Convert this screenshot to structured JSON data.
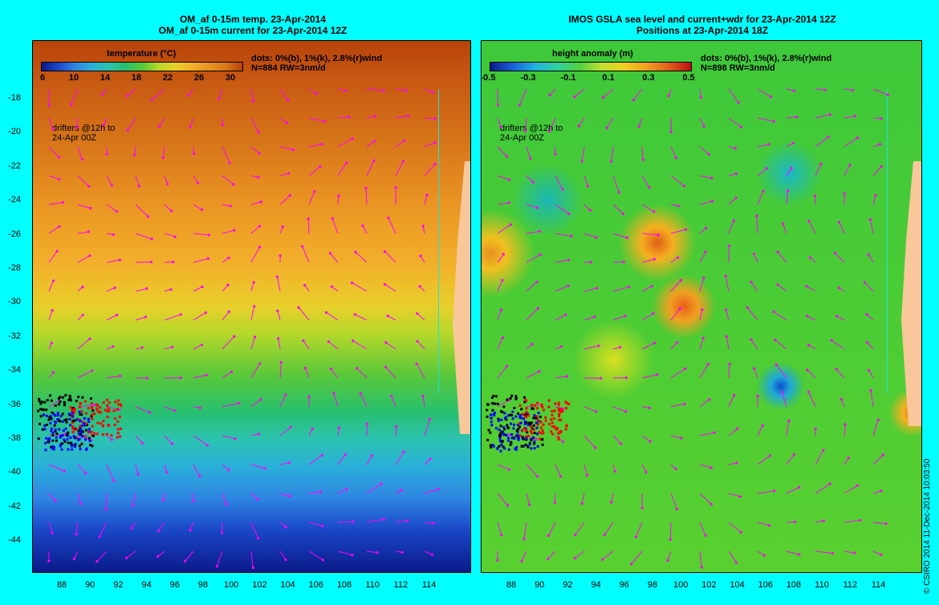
{
  "left": {
    "title_line1": "OM_af 0-15m temp. 23-Apr-2014",
    "title_line2": "OM_af 0-15m current for 23-Apr-2014 12Z",
    "colorbar_title": "temperature (°C)",
    "colorbar_ticks": [
      "6",
      "10",
      "14",
      "18",
      "22",
      "26",
      "30"
    ],
    "info_line1": "dots: 0%(b), 1%(k), 2.8%(r)wind",
    "info_line2": "N=884 RW=3nm/d",
    "note_line1": "drifters @12h to",
    "note_line2": "24-Apr 00Z"
  },
  "right": {
    "title_line1": "IMOS GSLA sea level and current+wdr for 23-Apr-2014 12Z",
    "title_line2": "Positions at 23-Apr-2014 18Z",
    "colorbar_title": "height anomaly (m)",
    "colorbar_ticks": [
      "-0.5",
      "-0.3",
      "-0.1",
      "0.1",
      "0.3",
      "0.5"
    ],
    "info_line1": "dots: 0%(b), 1%(k), 2.8%(r)wind",
    "info_line2": "N=898 RW=3nm/d",
    "note_line1": "drifters @12h to",
    "note_line2": "24-Apr 00Z"
  },
  "y_ticks": [
    "-18",
    "-20",
    "-22",
    "-24",
    "-26",
    "-28",
    "-30",
    "-32",
    "-34",
    "-36",
    "-38",
    "-40",
    "-42",
    "-44"
  ],
  "left_x_ticks": [
    "88",
    "90",
    "92",
    "94",
    "96",
    "98",
    "100",
    "102",
    "104",
    "106",
    "108",
    "110",
    "112",
    "114"
  ],
  "right_x_ticks": [
    "88",
    "90",
    "92",
    "94",
    "96",
    "98",
    "100",
    "102",
    "104",
    "106",
    "108",
    "110",
    "112",
    "114"
  ],
  "credit": "© CSIRO 2014   11-Dec-2014 10:03:50",
  "colors": {
    "background": "#00ffff",
    "arrows": "#ff00ff",
    "drifter_blue": "#0000ff",
    "drifter_black": "#000000",
    "drifter_red": "#ff0000",
    "land": "#f8c89a",
    "coastline": "#20e0e0"
  }
}
